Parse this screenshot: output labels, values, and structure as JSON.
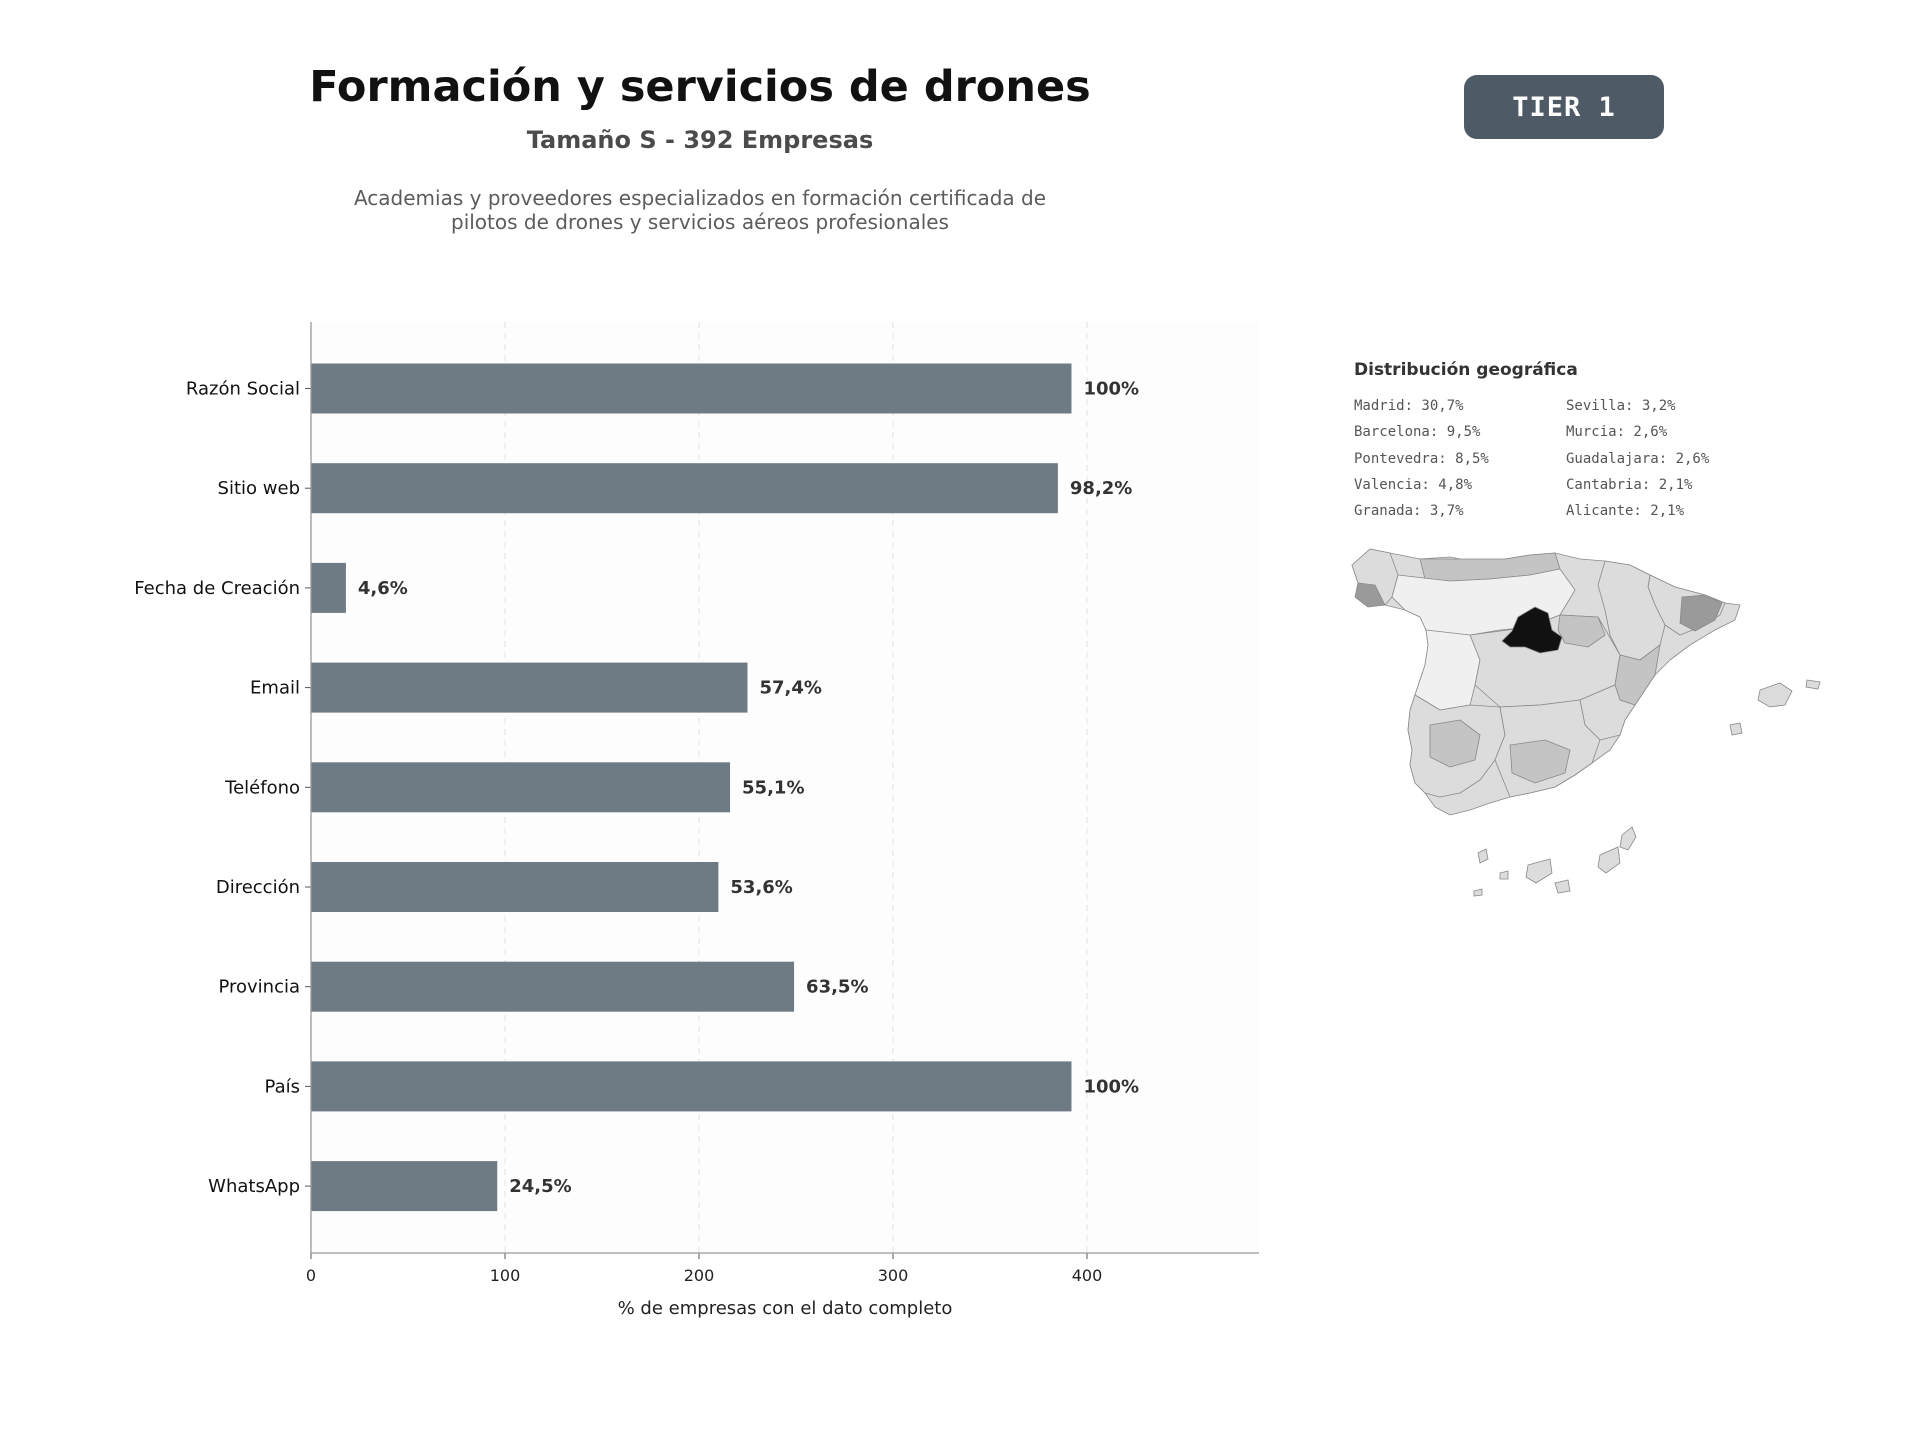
{
  "header": {
    "title": "Formación y servicios de drones",
    "subtitle": "Tamaño S - 392 Empresas",
    "description_lines": [
      "Academias y proveedores especializados en formación certificada de",
      "pilotos de drones y servicios aéreos profesionales"
    ],
    "tier_label": "TIER 1"
  },
  "chart_data": {
    "type": "bar",
    "orientation": "horizontal",
    "categories": [
      "Razón Social",
      "Sitio web",
      "Fecha de Creación",
      "Email",
      "Teléfono",
      "Dirección",
      "Provincia",
      "País",
      "WhatsApp"
    ],
    "values": [
      392,
      385,
      18,
      225,
      216,
      210,
      249,
      392,
      96
    ],
    "data_labels": [
      "100%",
      "98,2%",
      "4,6%",
      "57,4%",
      "55,1%",
      "53,6%",
      "63,5%",
      "100%",
      "24,5%"
    ],
    "xlabel": "% de empresas con el dato completo",
    "xlim": [
      0,
      490
    ],
    "xticks": [
      0,
      100,
      200,
      300,
      400
    ],
    "grid": "vertical-dashed",
    "bar_color": "#6e7a84"
  },
  "geo": {
    "title": "Distribución geográfica",
    "column_left": [
      "Madrid: 30,7%",
      "Barcelona: 9,5%",
      "Pontevedra: 8,5%",
      "Valencia: 4,8%",
      "Granada: 3,7%"
    ],
    "column_right": [
      "Sevilla: 3,2%",
      "Murcia: 2,6%",
      "Guadalajara: 2,6%",
      "Cantabria: 2,1%",
      "Alicante: 2,1%"
    ],
    "map_colors": {
      "madrid": "#111111",
      "high": "#9a9a9a",
      "mid": "#c4c4c4",
      "low": "#dcdcdc",
      "lowest": "#f0f0f0"
    }
  }
}
